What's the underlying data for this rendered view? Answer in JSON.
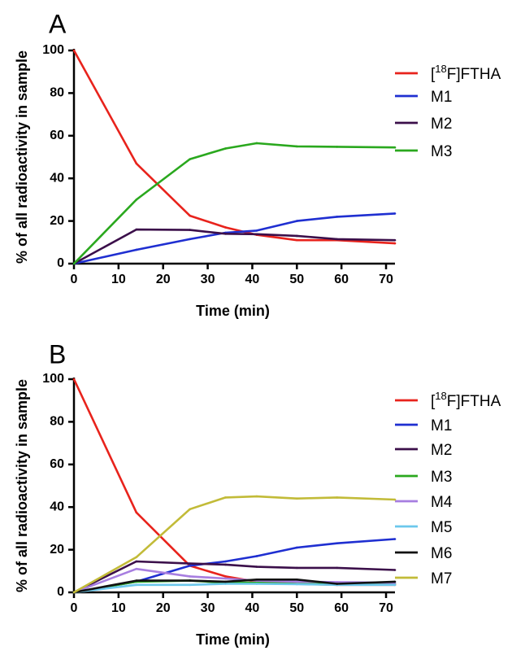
{
  "chart_data": [
    {
      "type": "line",
      "panel_label": "A",
      "xlabel": "Time (min)",
      "ylabel": "% of all radioactivity in sample",
      "xlim": [
        0,
        72
      ],
      "ylim": [
        0,
        100
      ],
      "xticks": [
        0,
        10,
        20,
        30,
        40,
        50,
        60,
        70
      ],
      "yticks": [
        0,
        20,
        40,
        60,
        80,
        100
      ],
      "grid": false,
      "legend_position": "right",
      "series": [
        {
          "name": "[18F]FTHA",
          "label_prefix": "[",
          "label_sup": "18",
          "label_suffix": "F]FTHA",
          "color": "#e8231c",
          "x": [
            0,
            14,
            26,
            34,
            41,
            50,
            59,
            72
          ],
          "y": [
            100,
            47,
            22.5,
            17,
            13.5,
            11,
            11,
            9.5
          ]
        },
        {
          "name": "M1",
          "color": "#1f2fd1",
          "x": [
            0,
            14,
            26,
            34,
            41,
            50,
            59,
            72
          ],
          "y": [
            0,
            6.5,
            11.5,
            14.5,
            15.5,
            20,
            22,
            23.5
          ]
        },
        {
          "name": "M2",
          "color": "#3b0f4a",
          "x": [
            0,
            14,
            26,
            34,
            41,
            50,
            59,
            72
          ],
          "y": [
            0,
            16,
            15.8,
            14,
            13.8,
            13,
            11.5,
            11
          ]
        },
        {
          "name": "M3",
          "color": "#2aa81e",
          "x": [
            0,
            14,
            26,
            34,
            41,
            50,
            59,
            72
          ],
          "y": [
            0,
            30,
            49,
            54,
            56.5,
            55,
            54.8,
            54.5
          ]
        }
      ]
    },
    {
      "type": "line",
      "panel_label": "B",
      "xlabel": "Time (min)",
      "ylabel": "% of all radioactivity in sample",
      "xlim": [
        0,
        72
      ],
      "ylim": [
        0,
        100
      ],
      "xticks": [
        0,
        10,
        20,
        30,
        40,
        50,
        60,
        70
      ],
      "yticks": [
        0,
        20,
        40,
        60,
        80,
        100
      ],
      "grid": false,
      "legend_position": "right",
      "series": [
        {
          "name": "[18F]FTHA",
          "label_prefix": "[",
          "label_sup": "18",
          "label_suffix": "F]FTHA",
          "color": "#e8231c",
          "x": [
            0,
            14,
            26,
            34,
            41,
            50,
            59,
            72
          ],
          "y": [
            100,
            37.5,
            12.5,
            7.5,
            5,
            4,
            3.5,
            3.5
          ]
        },
        {
          "name": "M1",
          "color": "#1f2fd1",
          "x": [
            0,
            14,
            26,
            34,
            41,
            50,
            59,
            72
          ],
          "y": [
            0,
            5,
            12.5,
            14.5,
            17,
            21,
            23,
            25
          ]
        },
        {
          "name": "M2",
          "color": "#3b0f4a",
          "x": [
            0,
            14,
            26,
            34,
            41,
            50,
            59,
            72
          ],
          "y": [
            0,
            14.5,
            13.5,
            13,
            12,
            11.5,
            11.5,
            10.5
          ]
        },
        {
          "name": "M3",
          "color": "#2aa81e",
          "x": [
            0,
            14,
            26,
            34,
            41,
            50,
            59,
            72
          ],
          "y": [
            0,
            5,
            5.5,
            4.5,
            4.5,
            4,
            4,
            4
          ]
        },
        {
          "name": "M4",
          "color": "#a77ee0",
          "x": [
            0,
            14,
            26,
            34,
            41,
            50,
            59,
            72
          ],
          "y": [
            0,
            11,
            7.5,
            6.5,
            5.5,
            5,
            4.8,
            4.5
          ]
        },
        {
          "name": "M5",
          "color": "#6cc8ec",
          "x": [
            0,
            14,
            26,
            34,
            41,
            50,
            59,
            72
          ],
          "y": [
            0,
            3.5,
            3.5,
            4,
            4,
            3.8,
            3.5,
            3.5
          ]
        },
        {
          "name": "M6",
          "color": "#111111",
          "x": [
            0,
            14,
            26,
            34,
            41,
            50,
            59,
            72
          ],
          "y": [
            0,
            5.5,
            5.5,
            5,
            6,
            6,
            4,
            5
          ]
        },
        {
          "name": "M7",
          "color": "#c2bb38",
          "x": [
            0,
            14,
            26,
            34,
            41,
            50,
            59,
            72
          ],
          "y": [
            0,
            16.5,
            39,
            44.5,
            45,
            44,
            44.5,
            43.5
          ]
        }
      ]
    }
  ]
}
